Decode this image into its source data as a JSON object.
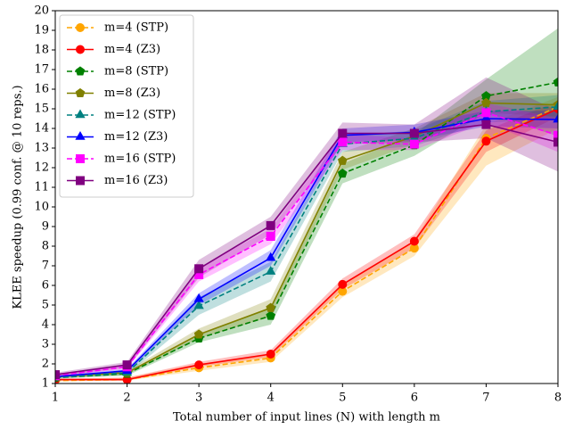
{
  "chart_data": {
    "type": "line",
    "xlabel": "Total number of input lines (N) with length m",
    "ylabel": "KLEE speedup (0.99 conf. @ 10 reps.)",
    "x": [
      1,
      2,
      3,
      4,
      5,
      6,
      7,
      8
    ],
    "xlim": [
      1,
      8
    ],
    "xticks": [
      1,
      2,
      3,
      4,
      5,
      6,
      7,
      8
    ],
    "ylim": [
      1,
      20
    ],
    "yticks": [
      1,
      2,
      3,
      4,
      5,
      6,
      7,
      8,
      9,
      10,
      11,
      12,
      13,
      14,
      15,
      16,
      17,
      18,
      19,
      20
    ],
    "legend": "upper left",
    "series": [
      {
        "name": "m=4 (STP)",
        "color": "#ffa500",
        "marker": "circle",
        "dashed": true,
        "values": [
          1.15,
          1.2,
          1.8,
          2.3,
          5.7,
          7.9,
          13.5,
          15.1
        ],
        "lower": [
          1.1,
          1.15,
          1.65,
          2.1,
          5.4,
          7.5,
          12.1,
          14.0
        ],
        "upper": [
          1.2,
          1.3,
          2.0,
          2.5,
          6.0,
          8.3,
          14.2,
          15.6
        ]
      },
      {
        "name": "m=4 (Z3)",
        "color": "#ff0000",
        "marker": "circle",
        "dashed": false,
        "values": [
          1.2,
          1.2,
          1.95,
          2.5,
          6.05,
          8.25,
          13.35,
          15.0
        ],
        "lower": [
          1.15,
          1.15,
          1.85,
          2.35,
          5.8,
          7.9,
          12.8,
          14.6
        ],
        "upper": [
          1.25,
          1.3,
          2.1,
          2.7,
          6.35,
          8.6,
          13.9,
          15.4
        ]
      },
      {
        "name": "m=8 (STP)",
        "color": "#008000",
        "marker": "pentagon",
        "dashed": true,
        "values": [
          1.3,
          1.5,
          3.3,
          4.45,
          11.7,
          13.15,
          15.65,
          16.35
        ],
        "lower": [
          1.25,
          1.4,
          3.1,
          4.0,
          11.2,
          12.6,
          14.8,
          13.6
        ],
        "upper": [
          1.35,
          1.6,
          3.5,
          4.9,
          12.2,
          13.7,
          16.5,
          19.1
        ]
      },
      {
        "name": "m=8 (Z3)",
        "color": "#808000",
        "marker": "pentagon",
        "dashed": false,
        "values": [
          1.35,
          1.55,
          3.5,
          4.85,
          12.35,
          13.6,
          15.3,
          15.2
        ],
        "lower": [
          1.3,
          1.45,
          3.3,
          4.4,
          11.9,
          13.2,
          14.8,
          14.6
        ],
        "upper": [
          1.4,
          1.65,
          3.8,
          5.3,
          12.8,
          14.0,
          15.8,
          15.8
        ]
      },
      {
        "name": "m=12 (STP)",
        "color": "#008080",
        "marker": "triangle",
        "dashed": true,
        "values": [
          1.3,
          1.55,
          4.95,
          6.7,
          13.2,
          13.5,
          14.85,
          15.1
        ],
        "lower": [
          1.25,
          1.45,
          4.5,
          6.2,
          12.8,
          13.1,
          14.3,
          14.5
        ],
        "upper": [
          1.35,
          1.65,
          5.4,
          7.2,
          13.6,
          13.9,
          15.4,
          15.7
        ]
      },
      {
        "name": "m=12 (Z3)",
        "color": "#0000ff",
        "marker": "triangle",
        "dashed": false,
        "values": [
          1.35,
          1.65,
          5.3,
          7.4,
          13.65,
          13.8,
          14.5,
          14.45
        ],
        "lower": [
          1.3,
          1.55,
          5.0,
          7.0,
          13.3,
          13.4,
          14.1,
          14.0
        ],
        "upper": [
          1.4,
          1.75,
          5.6,
          7.8,
          14.0,
          14.2,
          14.9,
          14.9
        ]
      },
      {
        "name": "m=16 (STP)",
        "color": "#ff00ff",
        "marker": "square",
        "dashed": true,
        "values": [
          1.4,
          1.85,
          6.55,
          8.5,
          13.3,
          13.2,
          14.8,
          13.65
        ],
        "lower": [
          1.35,
          1.75,
          6.2,
          8.1,
          12.9,
          12.9,
          14.3,
          12.8
        ],
        "upper": [
          1.45,
          1.95,
          6.9,
          8.9,
          13.7,
          13.5,
          15.3,
          14.5
        ]
      },
      {
        "name": "m=16 (Z3)",
        "color": "#800080",
        "marker": "square",
        "dashed": false,
        "values": [
          1.45,
          1.95,
          6.85,
          9.05,
          13.75,
          13.75,
          14.2,
          13.3
        ],
        "lower": [
          1.35,
          1.8,
          6.4,
          8.6,
          13.2,
          13.3,
          13.5,
          11.8
        ],
        "upper": [
          1.55,
          2.1,
          7.3,
          9.5,
          14.3,
          14.2,
          16.6,
          14.9
        ]
      }
    ]
  }
}
